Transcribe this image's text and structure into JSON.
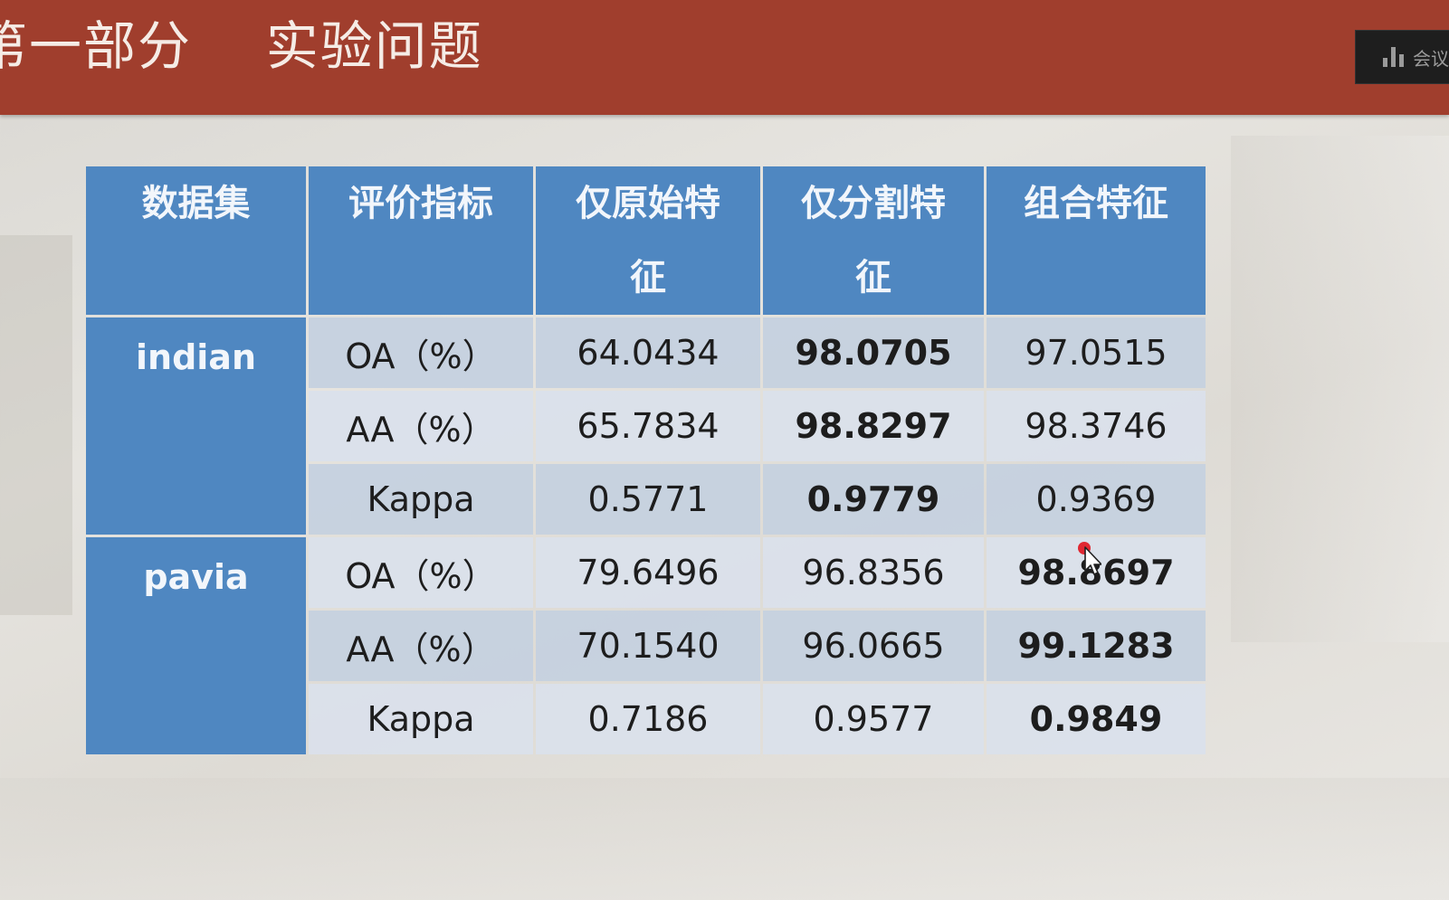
{
  "slide": {
    "title": "第一部分    实验问题"
  },
  "meeting_widget": {
    "label": "会议"
  },
  "table": {
    "headers": [
      "数据集",
      "评价指标",
      "仅原始特征",
      "仅分割特征",
      "组合特征"
    ],
    "header_lines": [
      [
        "数据集"
      ],
      [
        "评价指标"
      ],
      [
        "仅原始特",
        "征"
      ],
      [
        "仅分割特",
        "征"
      ],
      [
        "组合特征"
      ]
    ],
    "groups": [
      {
        "dataset": "indian",
        "rows": [
          {
            "metric": "OA（%）",
            "values": [
              "64.0434",
              "98.0705",
              "97.0515"
            ],
            "bold_index": 1
          },
          {
            "metric": "AA（%）",
            "values": [
              "65.7834",
              "98.8297",
              "98.3746"
            ],
            "bold_index": 1
          },
          {
            "metric": "Kappa",
            "values": [
              "0.5771",
              "0.9779",
              "0.9369"
            ],
            "bold_index": 1
          }
        ]
      },
      {
        "dataset": "pavia",
        "rows": [
          {
            "metric": "OA（%）",
            "values": [
              "79.6496",
              "96.8356",
              "98.8697"
            ],
            "bold_index": 2
          },
          {
            "metric": "AA（%）",
            "values": [
              "70.1540",
              "96.0665",
              "99.1283"
            ],
            "bold_index": 2
          },
          {
            "metric": "Kappa",
            "values": [
              "0.7186",
              "0.9577",
              "0.9849"
            ],
            "bold_index": 2
          }
        ]
      }
    ]
  },
  "colors": {
    "header_bar": "#a03e2d",
    "table_header": "#4f87c1",
    "row_dark": "#c4d0e0",
    "row_light": "#dae1ec",
    "cursor_dot": "#e0141e"
  }
}
